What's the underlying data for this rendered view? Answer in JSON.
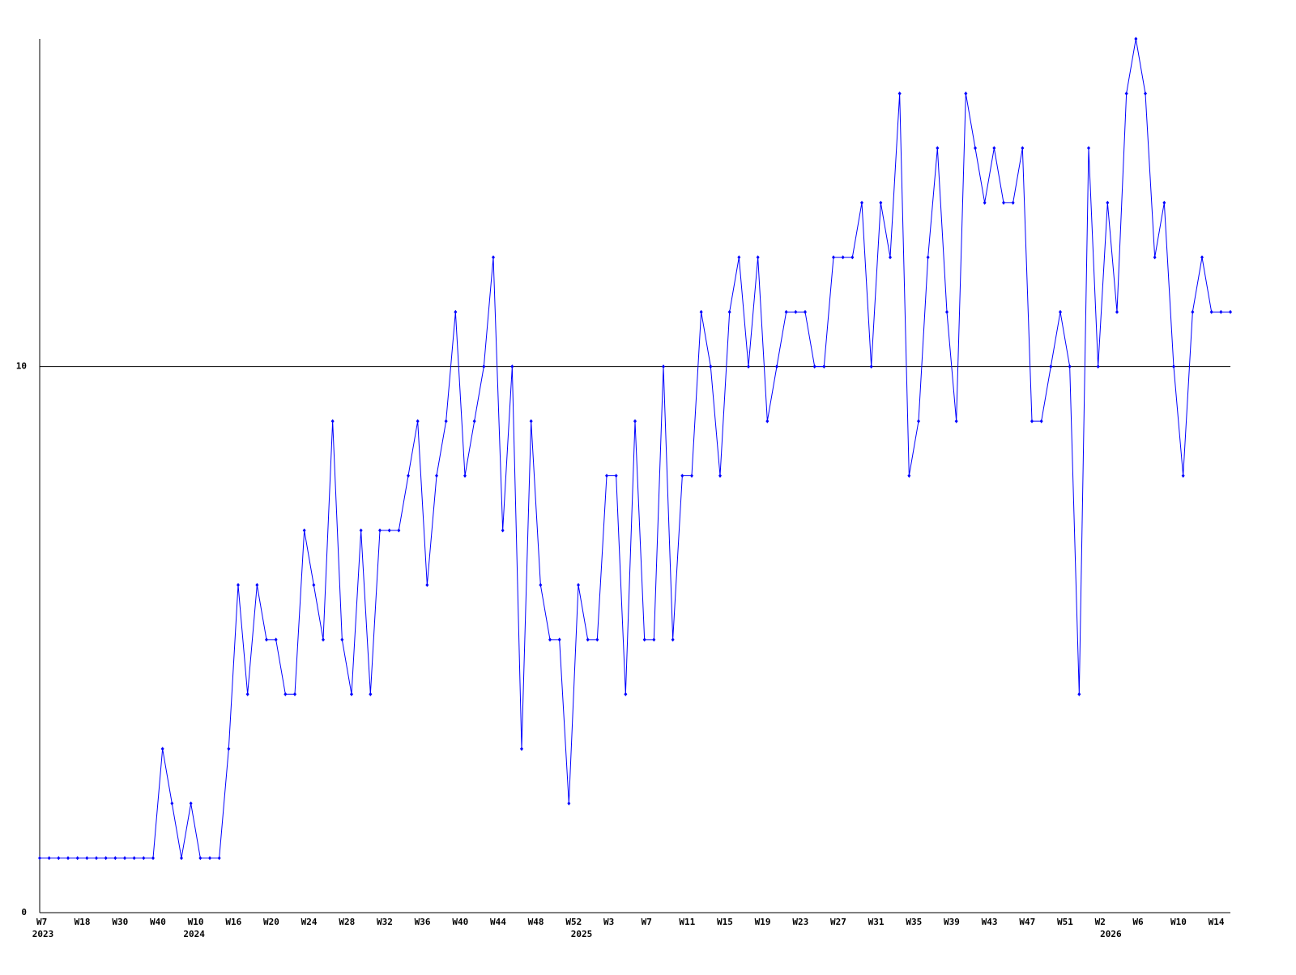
{
  "chart_data": {
    "type": "line",
    "categories": [
      "W7",
      null,
      null,
      null,
      "W18",
      null,
      null,
      null,
      "W30",
      null,
      null,
      null,
      "W40",
      null,
      null,
      null,
      "W10",
      null,
      null,
      null,
      "W16",
      null,
      null,
      null,
      "W20",
      null,
      null,
      null,
      "W24",
      null,
      null,
      null,
      "W28",
      null,
      null,
      null,
      "W32",
      null,
      null,
      null,
      "W36",
      null,
      null,
      null,
      "W40",
      null,
      null,
      null,
      "W44",
      null,
      null,
      null,
      "W48",
      null,
      null,
      null,
      "W52",
      null,
      null,
      null,
      "W3",
      null,
      null,
      null,
      "W7",
      null,
      null,
      null,
      "W11",
      null,
      null,
      null,
      "W15",
      null,
      null,
      null,
      "W19",
      null,
      null,
      null,
      "W23",
      null,
      null,
      null,
      "W27",
      null,
      null,
      null,
      "W31",
      null,
      null,
      null,
      "W35",
      null,
      null,
      null,
      "W39",
      null,
      null,
      null,
      "W43",
      null,
      null,
      null,
      "W47",
      null,
      null,
      null,
      "W51",
      null,
      null,
      null,
      "W2",
      null,
      null,
      null,
      "W6",
      null,
      null,
      null,
      "W10",
      null,
      null,
      null,
      "W14",
      null,
      null
    ],
    "year_labels": [
      "2023",
      null,
      null,
      null,
      null,
      null,
      null,
      null,
      null,
      null,
      null,
      null,
      null,
      null,
      null,
      null,
      "2024",
      null,
      null,
      null,
      null,
      null,
      null,
      null,
      null,
      null,
      null,
      null,
      null,
      null,
      null,
      null,
      null,
      null,
      null,
      null,
      null,
      null,
      null,
      null,
      null,
      null,
      null,
      null,
      null,
      null,
      null,
      null,
      null,
      null,
      null,
      null,
      null,
      null,
      null,
      null,
      null,
      "2025",
      null,
      null,
      null,
      null,
      null,
      null,
      null,
      null,
      null,
      null,
      null,
      null,
      null,
      null,
      null,
      null,
      null,
      null,
      null,
      null,
      null,
      null,
      null,
      null,
      null,
      null,
      null,
      null,
      null,
      null,
      null,
      null,
      null,
      null,
      null,
      null,
      null,
      null,
      null,
      null,
      null,
      null,
      null,
      null,
      null,
      null,
      null,
      null,
      null,
      null,
      null,
      null,
      null,
      null,
      null,
      "2026",
      null,
      null,
      null,
      null,
      null,
      null,
      null,
      null,
      null,
      null,
      null,
      null,
      null,
      null,
      null,
      null
    ],
    "series": [
      {
        "color": "#0000ff",
        "values": [
          1,
          1,
          1,
          1,
          1,
          1,
          1,
          1,
          1,
          1,
          1,
          1,
          1,
          3,
          2,
          1,
          2,
          1,
          1,
          1,
          3,
          6,
          4,
          6,
          5,
          5,
          4,
          4,
          7,
          6,
          5,
          9,
          5,
          4,
          7,
          4,
          7,
          7,
          7,
          8,
          9,
          6,
          8,
          9,
          11,
          8,
          9,
          10,
          12,
          7,
          10,
          3,
          9,
          6,
          5,
          5,
          2,
          6,
          5,
          5,
          8,
          8,
          4,
          9,
          5,
          5,
          10,
          5,
          8,
          8,
          11,
          10,
          8,
          11,
          12,
          10,
          12,
          9,
          10,
          11,
          11,
          11,
          10,
          10,
          12,
          12,
          12,
          13,
          10,
          13,
          12,
          15,
          8,
          9,
          12,
          14,
          11,
          9,
          15,
          14,
          13,
          14,
          13,
          13,
          14,
          9,
          9,
          10,
          11,
          10,
          4,
          14,
          10,
          13,
          11,
          15,
          16,
          15,
          12,
          13,
          10,
          8,
          11,
          12,
          11,
          11,
          11
        ]
      }
    ],
    "ylim": [
      0,
      16
    ],
    "yticks": [
      0,
      10
    ],
    "grid": true
  }
}
